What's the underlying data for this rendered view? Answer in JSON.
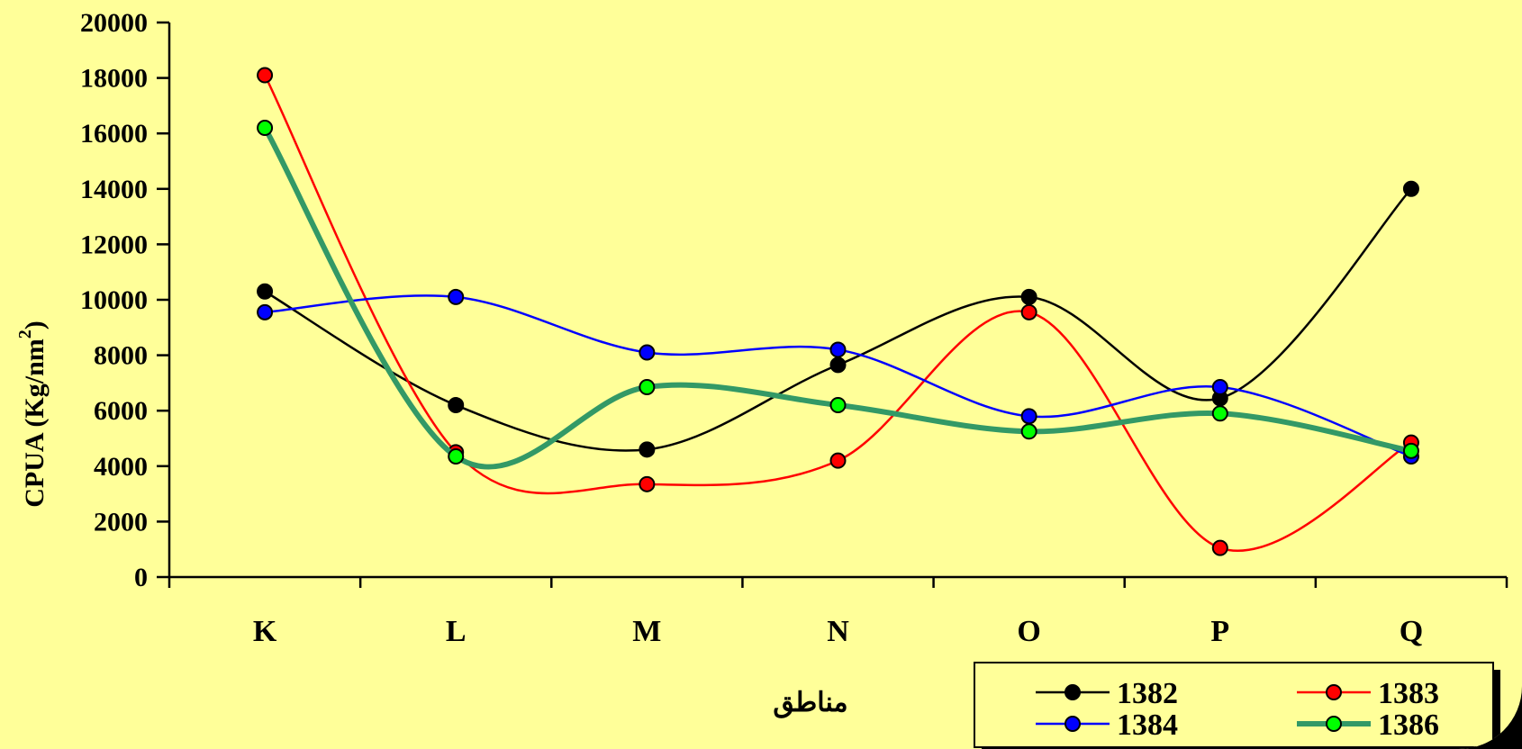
{
  "chart_data": {
    "type": "line",
    "categories": [
      "K",
      "L",
      "M",
      "N",
      "O",
      "P",
      "Q"
    ],
    "xlabel": "مناطق",
    "ylabel": "CPUA (Kg/nm",
    "ylabel_superscript": "2",
    "ylabel_close": ")",
    "ylim": [
      0,
      20000
    ],
    "yticks": [
      0,
      2000,
      4000,
      6000,
      8000,
      10000,
      12000,
      14000,
      16000,
      18000,
      20000
    ],
    "grid": false,
    "legend_position": "bottom-right",
    "series": [
      {
        "name": "1382",
        "values": [
          10300,
          6200,
          4600,
          7650,
          10100,
          6450,
          14000
        ],
        "color": "#000000",
        "marker_color": "#000000",
        "width": 2.5
      },
      {
        "name": "1383",
        "values": [
          18100,
          4500,
          3350,
          4200,
          9550,
          1050,
          4850
        ],
        "color": "#ff0000",
        "marker_color": "#ff0000",
        "width": 2.5
      },
      {
        "name": "1384",
        "values": [
          9550,
          10100,
          8100,
          8200,
          5800,
          6850,
          4350
        ],
        "color": "#0000ff",
        "marker_color": "#0000ff",
        "width": 2.5
      },
      {
        "name": "1386",
        "values": [
          16200,
          4350,
          6850,
          6200,
          5250,
          5900,
          4550
        ],
        "color": "#339966",
        "marker_color": "#00ff00",
        "width": 6
      }
    ]
  }
}
